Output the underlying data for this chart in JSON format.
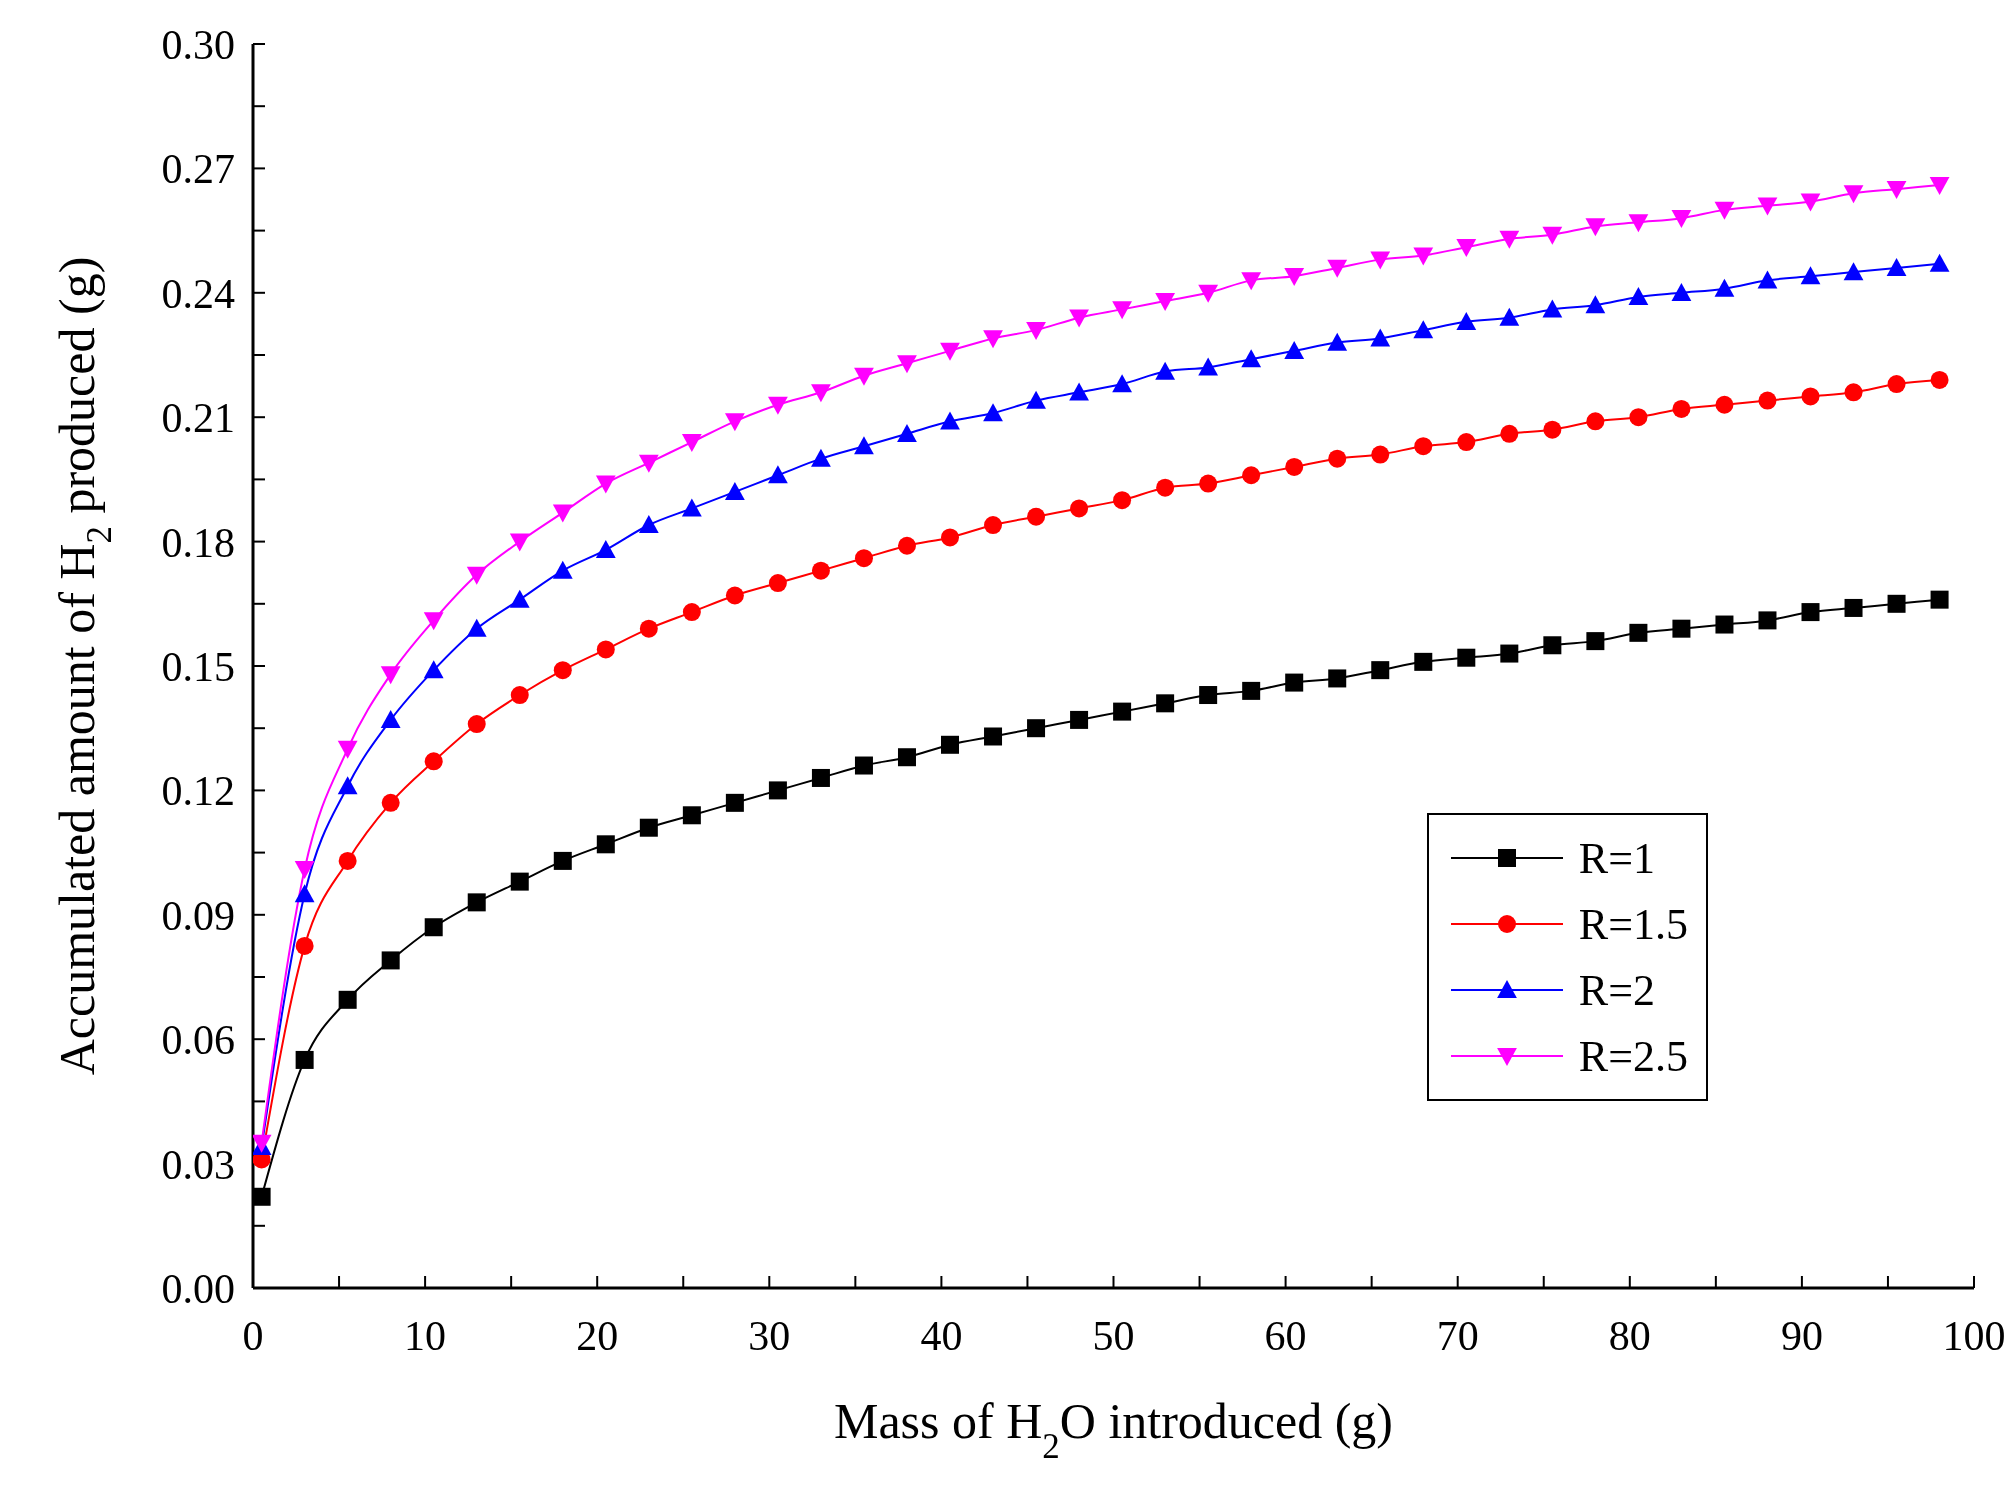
{
  "chart_data": {
    "type": "line",
    "xlabel": "Mass of H$_{2}$O introduced (g)",
    "ylabel": "Accumulated amount of H$_{2}$ produced (g)",
    "x": [
      0.5,
      3,
      5.5,
      8,
      10.5,
      13,
      15.5,
      18,
      20.5,
      23,
      25.5,
      28,
      30.5,
      33,
      35.5,
      38,
      40.5,
      43,
      45.5,
      48,
      50.5,
      53,
      55.5,
      58,
      60.5,
      63,
      65.5,
      68,
      70.5,
      73,
      75.5,
      78,
      80.5,
      83,
      85.5,
      88,
      90.5,
      93,
      95.5,
      98
    ],
    "series": [
      {
        "name": "R=1",
        "color": "#000000",
        "marker": "square",
        "values": [
          0.022,
          0.055,
          0.0695,
          0.079,
          0.087,
          0.093,
          0.098,
          0.103,
          0.107,
          0.111,
          0.114,
          0.117,
          0.12,
          0.123,
          0.126,
          0.128,
          0.131,
          0.133,
          0.135,
          0.137,
          0.139,
          0.141,
          0.143,
          0.144,
          0.146,
          0.147,
          0.149,
          0.151,
          0.152,
          0.153,
          0.155,
          0.156,
          0.158,
          0.159,
          0.16,
          0.161,
          0.163,
          0.164,
          0.165,
          0.166
        ]
      },
      {
        "name": "R=1.5",
        "color": "#ff0000",
        "marker": "circle",
        "values": [
          0.031,
          0.0825,
          0.103,
          0.117,
          0.127,
          0.136,
          0.143,
          0.149,
          0.154,
          0.159,
          0.163,
          0.167,
          0.17,
          0.173,
          0.176,
          0.179,
          0.181,
          0.184,
          0.186,
          0.188,
          0.19,
          0.193,
          0.194,
          0.196,
          0.198,
          0.2,
          0.201,
          0.203,
          0.204,
          0.206,
          0.207,
          0.209,
          0.21,
          0.212,
          0.213,
          0.214,
          0.215,
          0.216,
          0.218,
          0.219
        ]
      },
      {
        "name": "R=2",
        "color": "#0000ff",
        "marker": "triangle",
        "values": [
          0.034,
          0.095,
          0.121,
          0.137,
          0.149,
          0.159,
          0.166,
          0.173,
          0.178,
          0.184,
          0.188,
          0.192,
          0.196,
          0.2,
          0.203,
          0.206,
          0.209,
          0.211,
          0.214,
          0.216,
          0.218,
          0.221,
          0.222,
          0.224,
          0.226,
          0.228,
          0.229,
          0.231,
          0.233,
          0.234,
          0.236,
          0.237,
          0.239,
          0.24,
          0.241,
          0.243,
          0.244,
          0.245,
          0.246,
          0.247
        ]
      },
      {
        "name": "R=2.5",
        "color": "#ff00ff",
        "marker": "triangle-down",
        "values": [
          0.035,
          0.101,
          0.13,
          0.148,
          0.161,
          0.172,
          0.18,
          0.187,
          0.194,
          0.199,
          0.204,
          0.209,
          0.213,
          0.216,
          0.22,
          0.223,
          0.226,
          0.229,
          0.231,
          0.234,
          0.236,
          0.238,
          0.24,
          0.243,
          0.244,
          0.246,
          0.248,
          0.249,
          0.251,
          0.253,
          0.254,
          0.256,
          0.257,
          0.258,
          0.26,
          0.261,
          0.262,
          0.264,
          0.265,
          0.266
        ]
      }
    ],
    "xlim": [
      0,
      100
    ],
    "xticks": [
      0,
      {
        "value": 5,
        "label": null
      },
      10,
      {
        "value": 15,
        "label": null
      },
      20,
      {
        "value": 25,
        "label": null
      },
      30,
      {
        "value": 35,
        "label": null
      },
      40,
      {
        "value": 45,
        "label": null
      },
      50,
      {
        "value": 55,
        "label": null
      },
      60,
      {
        "value": 65,
        "label": null
      },
      70,
      {
        "value": 75,
        "label": null
      },
      80,
      {
        "value": 85,
        "label": null
      },
      90,
      {
        "value": 95,
        "label": null
      },
      100
    ],
    "ylim": [
      0,
      0.3
    ],
    "yticks": [
      {
        "value": 0,
        "label": "0.00"
      },
      {
        "value": 0.015,
        "label": null
      },
      {
        "value": 0.03,
        "label": "0.03"
      },
      {
        "value": 0.045,
        "label": null
      },
      {
        "value": 0.06,
        "label": "0.06"
      },
      {
        "value": 0.075,
        "label": null
      },
      {
        "value": 0.09,
        "label": "0.09"
      },
      {
        "value": 0.105,
        "label": null
      },
      {
        "value": 0.12,
        "label": "0.12"
      },
      {
        "value": 0.135,
        "label": null
      },
      {
        "value": 0.15,
        "label": "0.15"
      },
      {
        "value": 0.165,
        "label": null
      },
      {
        "value": 0.18,
        "label": "0.18"
      },
      {
        "value": 0.195,
        "label": null
      },
      {
        "value": 0.21,
        "label": "0.21"
      },
      {
        "value": 0.225,
        "label": null
      },
      {
        "value": 0.24,
        "label": "0.24"
      },
      {
        "value": 0.255,
        "label": null
      },
      {
        "value": 0.27,
        "label": "0.27"
      },
      {
        "value": 0.285,
        "label": null
      },
      {
        "value": 0.3,
        "label": "0.30"
      }
    ],
    "grid": false,
    "legend": "right",
    "line_style": "solid"
  }
}
